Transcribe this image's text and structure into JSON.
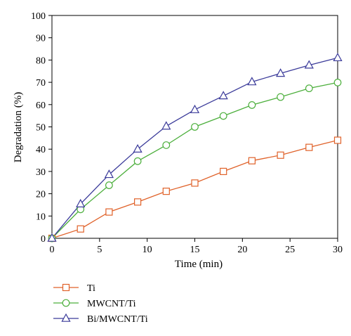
{
  "chart_data": {
    "type": "line",
    "title": "",
    "xlabel": "Time (min)",
    "ylabel": "Degradation (%)",
    "xlim": [
      0,
      30
    ],
    "ylim": [
      0,
      100
    ],
    "xticks": [
      0,
      5,
      10,
      15,
      20,
      25,
      30
    ],
    "yticks": [
      0,
      10,
      20,
      30,
      40,
      50,
      60,
      70,
      80,
      90,
      100
    ],
    "grid": false,
    "legend_position": "bottom-left",
    "x": [
      0,
      3,
      6,
      9,
      12,
      15,
      18,
      21,
      24,
      27,
      30
    ],
    "series": [
      {
        "name": "Ti",
        "marker": "square",
        "color": "#e0622a",
        "values": [
          0,
          4.2,
          11.8,
          16.3,
          21.1,
          24.8,
          30.0,
          34.8,
          37.3,
          40.8,
          44.0
        ]
      },
      {
        "name": "MWCNT/Ti",
        "marker": "circle",
        "color": "#4caf3c",
        "values": [
          0,
          13.0,
          23.8,
          34.6,
          41.8,
          50.0,
          54.9,
          59.8,
          63.4,
          67.3,
          69.9
        ]
      },
      {
        "name": "Bi/MWCNT/Ti",
        "marker": "triangle",
        "color": "#3b3b9a",
        "values": [
          0,
          15.4,
          28.6,
          40.0,
          50.3,
          57.7,
          63.9,
          70.2,
          74.0,
          77.7,
          81.0
        ]
      }
    ]
  }
}
